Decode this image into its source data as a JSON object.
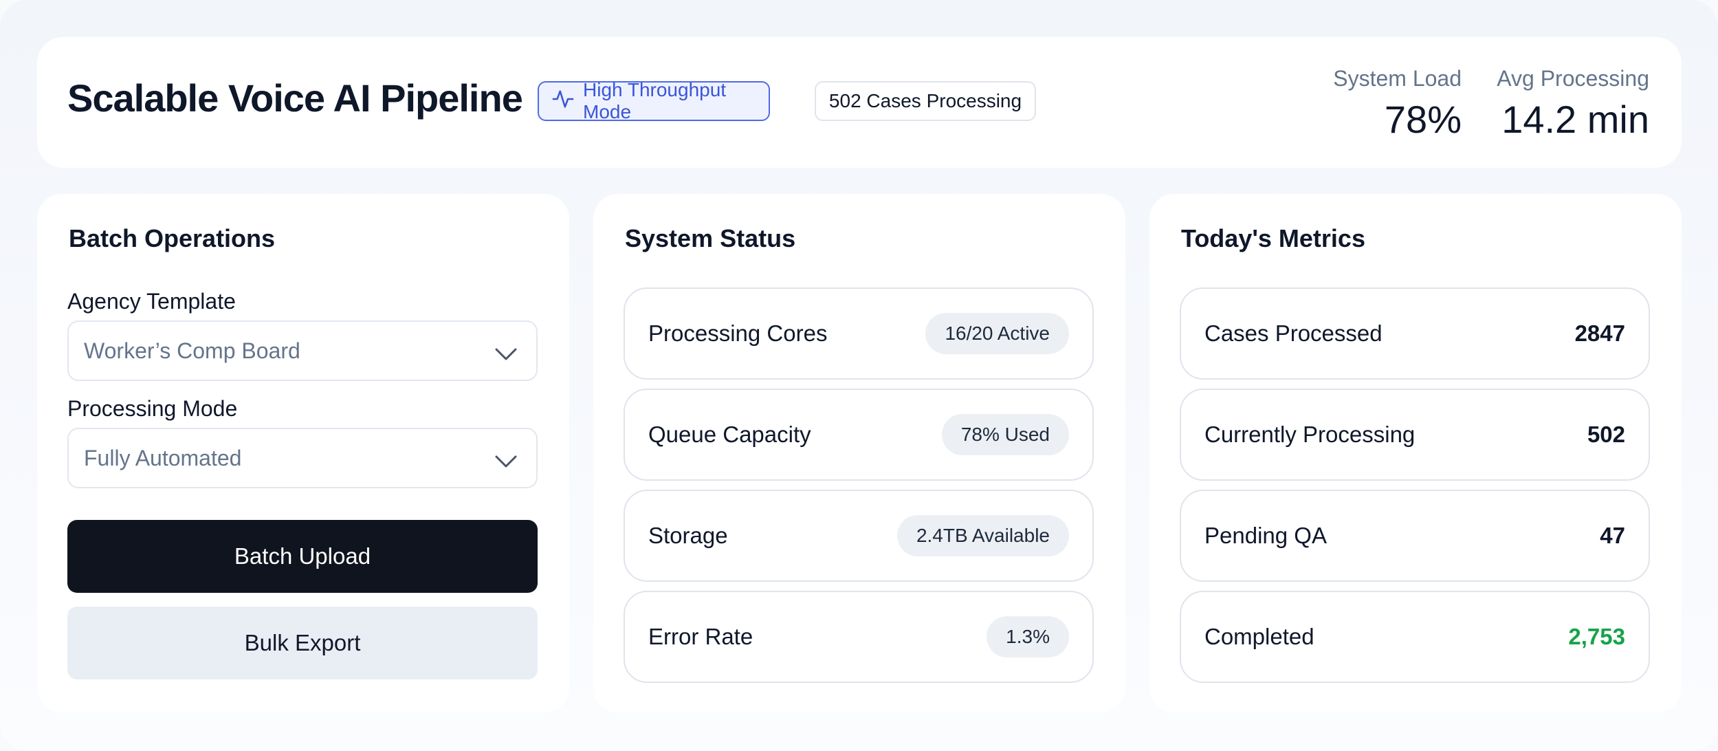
{
  "header": {
    "title": "Scalable Voice AI Pipeline",
    "mode_badge": "High Throughput Mode",
    "cases_badge": "502 Cases Processing",
    "stats": [
      {
        "label": "System Load",
        "value": "78%"
      },
      {
        "label": "Avg Processing",
        "value": "14.2 min"
      }
    ]
  },
  "batch": {
    "title": "Batch Operations",
    "agency_label": "Agency Template",
    "agency_value": "Worker’s Comp Board",
    "mode_label": "Processing Mode",
    "mode_value": "Fully Automated",
    "upload_label": "Batch Upload",
    "export_label": "Bulk Export"
  },
  "status": {
    "title": "System Status",
    "rows": [
      {
        "name": "Processing Cores",
        "value": "16/20 Active"
      },
      {
        "name": "Queue Capacity",
        "value": "78% Used"
      },
      {
        "name": "Storage",
        "value": "2.4TB Available"
      },
      {
        "name": "Error Rate",
        "value": "1.3%"
      }
    ]
  },
  "metrics": {
    "title": "Today's Metrics",
    "rows": [
      {
        "name": "Cases Processed",
        "value": "2847"
      },
      {
        "name": "Currently Processing",
        "value": "502"
      },
      {
        "name": "Pending QA",
        "value": "47"
      },
      {
        "name": "Completed",
        "value": "2,753"
      }
    ],
    "completed_color": "#16a34a"
  },
  "colors": {
    "accent": "#3b55d9",
    "primary_button": "#0f141e",
    "secondary_button": "#e9eef5"
  }
}
